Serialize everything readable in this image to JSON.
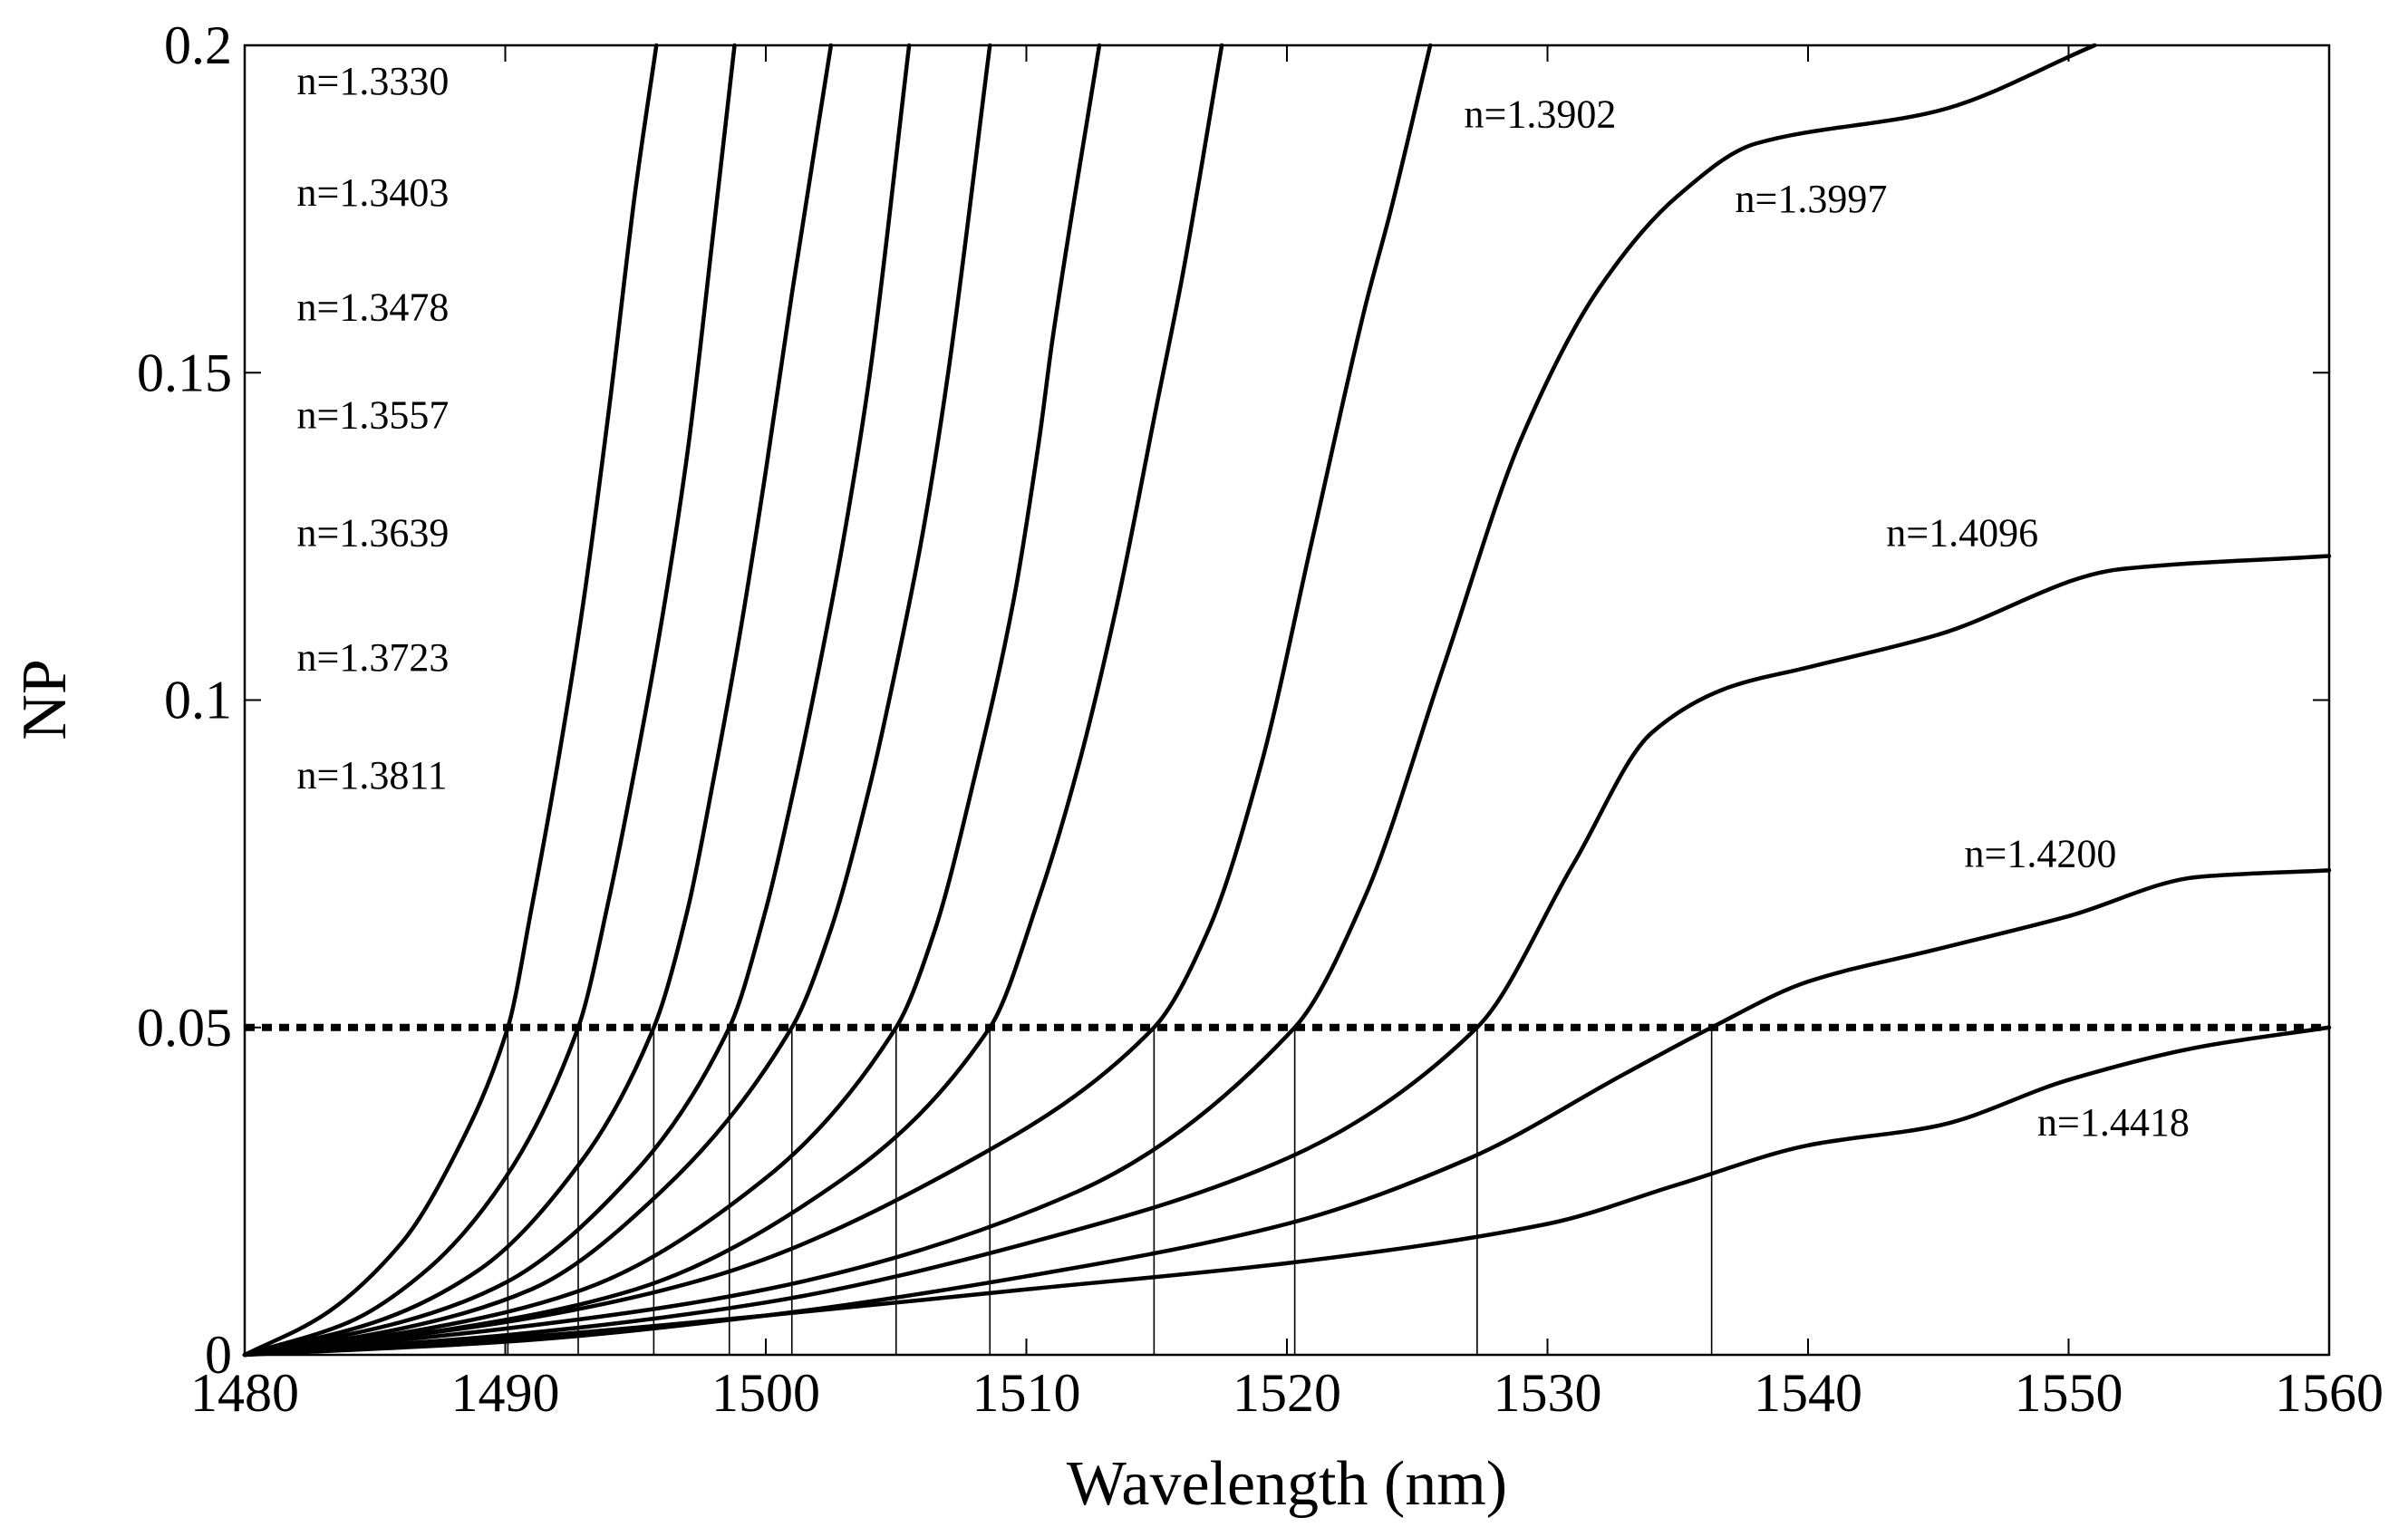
{
  "chart_data": {
    "type": "line",
    "title": "",
    "xlabel": "Wavelength (nm)",
    "ylabel": "NP",
    "xlim": [
      1480,
      1560
    ],
    "ylim": [
      0,
      0.2
    ],
    "xticks": [
      1480,
      1490,
      1500,
      1510,
      1520,
      1530,
      1540,
      1550,
      1560
    ],
    "xtick_labels": [
      "1480",
      "1490",
      "1500",
      "1510",
      "1520",
      "1530",
      "1540",
      "1550",
      "1560"
    ],
    "yticks": [
      0,
      0.05,
      0.1,
      0.15,
      0.2
    ],
    "ytick_labels": [
      "0",
      "0.05",
      "0.1",
      "0.15",
      "0.2"
    ],
    "threshold": {
      "y": 0.05,
      "style": "dotted"
    },
    "crossings": [
      1490.1,
      1492.8,
      1495.7,
      1498.6,
      1501.0,
      1505.0,
      1508.6,
      1514.9,
      1520.3,
      1527.3,
      1536.3
    ],
    "series": [
      {
        "name": "n=1.3330",
        "x": [
          1480,
          1483,
          1486,
          1488,
          1490.1,
          1491,
          1492,
          1493,
          1494,
          1495,
          1495.8
        ],
        "y": [
          0,
          0.006,
          0.017,
          0.03,
          0.05,
          0.068,
          0.09,
          0.115,
          0.145,
          0.178,
          0.2
        ]
      },
      {
        "name": "n=1.3403",
        "x": [
          1480,
          1484,
          1487,
          1490,
          1492.8,
          1494,
          1495,
          1496,
          1497,
          1498,
          1498.8
        ],
        "y": [
          0,
          0.005,
          0.013,
          0.027,
          0.05,
          0.07,
          0.09,
          0.112,
          0.138,
          0.172,
          0.2
        ]
      },
      {
        "name": "n=1.3478",
        "x": [
          1480,
          1485,
          1489,
          1493,
          1495.7,
          1497,
          1498,
          1499,
          1500,
          1501,
          1502.5
        ],
        "y": [
          0,
          0.005,
          0.013,
          0.03,
          0.05,
          0.068,
          0.088,
          0.11,
          0.135,
          0.162,
          0.2
        ]
      },
      {
        "name": "n=1.3557",
        "x": [
          1480,
          1486,
          1490,
          1495,
          1498.6,
          1500,
          1501,
          1502,
          1503,
          1504,
          1505.5
        ],
        "y": [
          0,
          0.005,
          0.011,
          0.028,
          0.05,
          0.068,
          0.085,
          0.104,
          0.125,
          0.15,
          0.2
        ]
      },
      {
        "name": "n=1.3639",
        "x": [
          1480,
          1486,
          1491,
          1496,
          1501.0,
          1502.5,
          1504,
          1505,
          1506,
          1507,
          1508.6
        ],
        "y": [
          0,
          0.004,
          0.01,
          0.025,
          0.05,
          0.065,
          0.087,
          0.105,
          0.125,
          0.15,
          0.2
        ]
      },
      {
        "name": "n=1.3723",
        "x": [
          1480,
          1487,
          1493,
          1500,
          1505.0,
          1506.5,
          1508,
          1509.5,
          1510.5,
          1511,
          1512.8
        ],
        "y": [
          0,
          0.004,
          0.01,
          0.027,
          0.05,
          0.065,
          0.088,
          0.115,
          0.14,
          0.155,
          0.2
        ]
      },
      {
        "name": "n=1.3811",
        "x": [
          1480,
          1488,
          1495,
          1503,
          1508.6,
          1510.5,
          1512,
          1513.5,
          1515,
          1516,
          1517.5
        ],
        "y": [
          0,
          0.004,
          0.01,
          0.027,
          0.05,
          0.07,
          0.09,
          0.115,
          0.145,
          0.165,
          0.2
        ]
      },
      {
        "name": "n=1.3902",
        "x": [
          1480,
          1490,
          1498,
          1508,
          1514.9,
          1517,
          1519,
          1521,
          1523,
          1524,
          1525.5
        ],
        "y": [
          0,
          0.005,
          0.012,
          0.03,
          0.05,
          0.065,
          0.09,
          0.125,
          0.16,
          0.175,
          0.2
        ]
      },
      {
        "name": "n=1.3997",
        "x": [
          1480,
          1490,
          1500,
          1512,
          1520.3,
          1523,
          1526,
          1529,
          1532,
          1535,
          1538,
          1545,
          1551
        ],
        "y": [
          0,
          0.004,
          0.01,
          0.025,
          0.05,
          0.07,
          0.105,
          0.14,
          0.163,
          0.177,
          0.185,
          0.19,
          0.2
        ]
      },
      {
        "name": "n=1.4096",
        "x": [
          1480,
          1490,
          1500,
          1510,
          1520,
          1527.3,
          1531,
          1534,
          1537,
          1540,
          1545,
          1552,
          1560
        ],
        "y": [
          0,
          0.003,
          0.008,
          0.017,
          0.03,
          0.05,
          0.075,
          0.095,
          0.102,
          0.105,
          0.11,
          0.12,
          0.122
        ]
      },
      {
        "name": "n=1.4200",
        "x": [
          1480,
          1490,
          1500,
          1510,
          1520,
          1527,
          1533,
          1536.3,
          1540,
          1545,
          1550,
          1555,
          1560
        ],
        "y": [
          0,
          0.002,
          0.006,
          0.012,
          0.02,
          0.03,
          0.043,
          0.05,
          0.057,
          0.062,
          0.067,
          0.073,
          0.074
        ]
      },
      {
        "name": "n=1.4418",
        "x": [
          1480,
          1490,
          1500,
          1510,
          1520,
          1530,
          1535,
          1540,
          1545,
          1550,
          1555,
          1560
        ],
        "y": [
          0,
          0.0025,
          0.006,
          0.01,
          0.014,
          0.02,
          0.026,
          0.032,
          0.035,
          0.042,
          0.047,
          0.05
        ]
      }
    ],
    "annotations": [
      {
        "text": "n=1.3330",
        "x": 1482.0,
        "y": 0.1925
      },
      {
        "text": "n=1.3403",
        "x": 1482.0,
        "y": 0.1755
      },
      {
        "text": "n=1.3478",
        "x": 1482.0,
        "y": 0.158
      },
      {
        "text": "n=1.3557",
        "x": 1482.0,
        "y": 0.1415
      },
      {
        "text": "n=1.3639",
        "x": 1482.0,
        "y": 0.1235
      },
      {
        "text": "n=1.3723",
        "x": 1482.0,
        "y": 0.1045
      },
      {
        "text": "n=1.3811",
        "x": 1482.0,
        "y": 0.0865
      },
      {
        "text": "n=1.3902",
        "x": 1526.8,
        "y": 0.1875
      },
      {
        "text": "n=1.3997",
        "x": 1537.2,
        "y": 0.1745
      },
      {
        "text": "n=1.4096",
        "x": 1543.0,
        "y": 0.1235
      },
      {
        "text": "n=1.4200",
        "x": 1546.0,
        "y": 0.0745
      },
      {
        "text": "n=1.4418",
        "x": 1548.8,
        "y": 0.0335
      }
    ]
  }
}
